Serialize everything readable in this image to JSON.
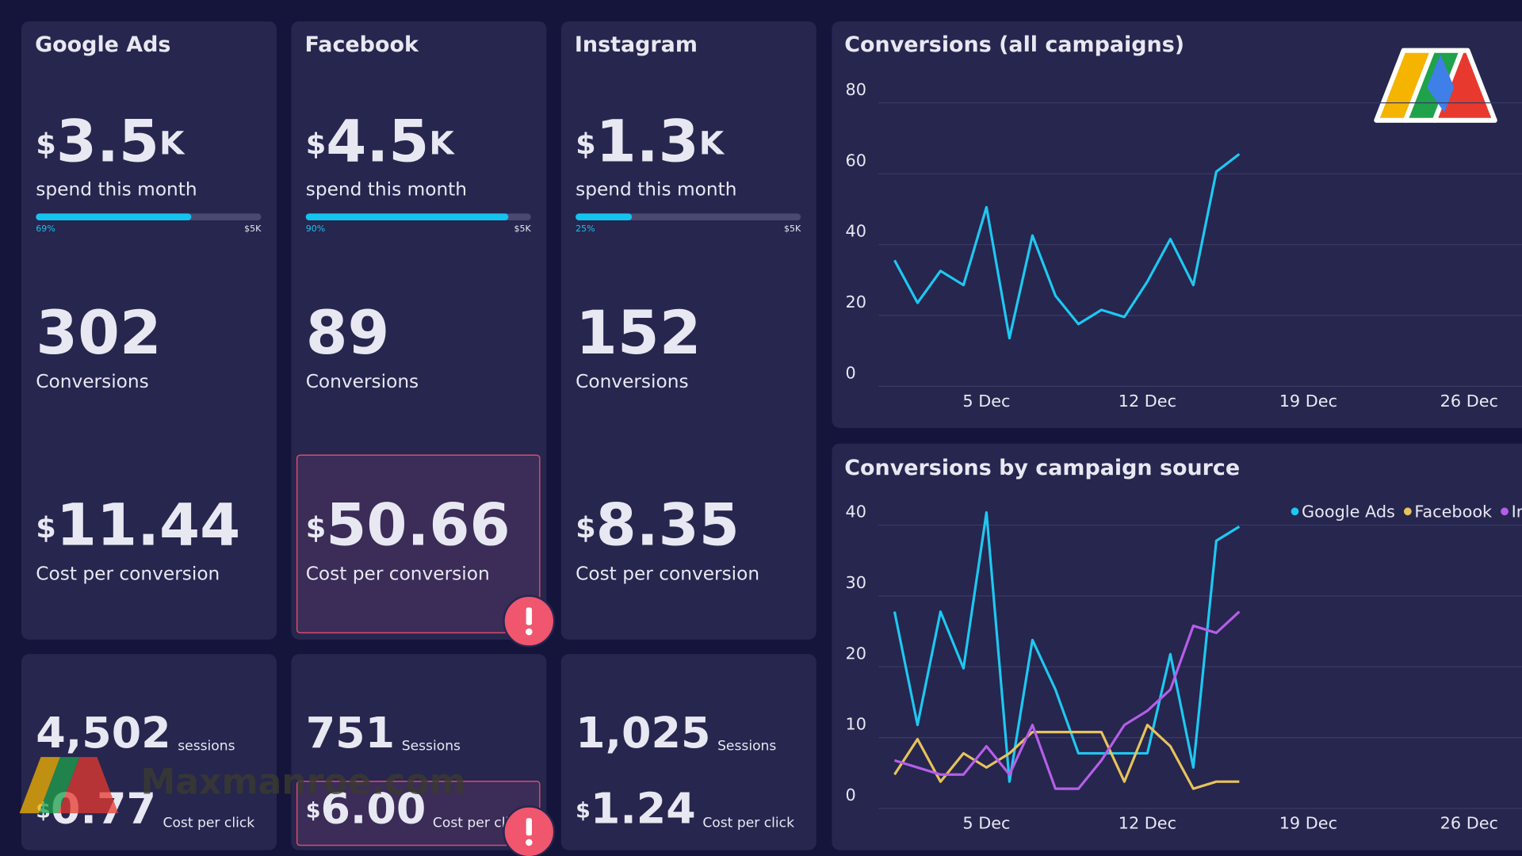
{
  "cards": [
    {
      "title": "Google Ads",
      "spend": {
        "currency": "$",
        "amount": "3.5",
        "unit": "K"
      },
      "spend_label": "spend this month",
      "progress": {
        "value": 69,
        "label": "69%"
      },
      "max_label": "$5K",
      "conversions": "302",
      "conversions_label": "Conversions",
      "cost_per_conversion": {
        "currency": "$",
        "amount": "11.44"
      },
      "cost_per_conversion_label": "Cost per conversion",
      "sessions": "4,502",
      "sessions_label": "sessions",
      "cost_per_click": {
        "currency": "$",
        "amount": "0.77"
      },
      "cost_per_click_label": "Cost per click"
    },
    {
      "title": "Facebook",
      "spend": {
        "currency": "$",
        "amount": "4.5",
        "unit": "K"
      },
      "spend_label": "spend this month",
      "progress": {
        "value": 90,
        "label": "90%"
      },
      "max_label": "$5K",
      "conversions": "89",
      "conversions_label": "Conversions",
      "cost_per_conversion": {
        "currency": "$",
        "amount": "50.66"
      },
      "cost_per_conversion_label": "Cost per conversion",
      "sessions": "751",
      "sessions_label": "Sessions",
      "cost_per_click": {
        "currency": "$",
        "amount": "6.00"
      },
      "cost_per_click_label": "Cost per click",
      "alert": true
    },
    {
      "title": "Instagram",
      "spend": {
        "currency": "$",
        "amount": "1.3",
        "unit": "K"
      },
      "spend_label": "spend this month",
      "progress": {
        "value": 25,
        "label": "25%"
      },
      "max_label": "$5K",
      "conversions": "152",
      "conversions_label": "Conversions",
      "cost_per_conversion": {
        "currency": "$",
        "amount": "8.35"
      },
      "cost_per_conversion_label": "Cost per conversion",
      "sessions": "1,025",
      "sessions_label": "Sessions",
      "cost_per_click": {
        "currency": "$",
        "amount": "1.24"
      },
      "cost_per_click_label": "Cost per click"
    }
  ],
  "watermark": "Maxmanroe.com",
  "chart_data": [
    {
      "type": "line",
      "title": "Conversions (all campaigns)",
      "x": [
        1,
        2,
        3,
        4,
        5,
        6,
        7,
        8,
        9,
        10,
        11,
        12,
        13,
        14,
        15,
        16
      ],
      "series": [
        {
          "name": "All campaigns",
          "color": "#1ec8f0",
          "values": [
            32,
            20,
            29,
            25,
            47,
            10,
            39,
            22,
            14,
            18,
            16,
            26,
            38,
            25,
            57,
            62
          ]
        }
      ],
      "xlim": [
        0.3,
        28.3
      ],
      "xticks": [
        {
          "value": 5,
          "label": "5 Dec"
        },
        {
          "value": 12,
          "label": "12 Dec"
        },
        {
          "value": 19,
          "label": "19 Dec"
        },
        {
          "value": 26,
          "label": "26 Dec"
        }
      ],
      "ylim": [
        0,
        80
      ],
      "yticks": [
        0,
        20,
        40,
        60,
        80
      ],
      "grid": true,
      "legend": false
    },
    {
      "type": "line",
      "title": "Conversions by campaign source",
      "x": [
        1,
        2,
        3,
        4,
        5,
        6,
        7,
        8,
        9,
        10,
        11,
        12,
        13,
        14,
        15,
        16
      ],
      "series": [
        {
          "name": "Google Ads",
          "color": "#1ec8f0",
          "values": [
            26,
            10,
            26,
            18,
            40,
            2,
            22,
            15,
            6,
            6,
            6,
            6,
            20,
            4,
            36,
            38
          ]
        },
        {
          "name": "Facebook",
          "color": "#e6c35c",
          "values": [
            3,
            8,
            2,
            6,
            4,
            6,
            9,
            9,
            9,
            9,
            2,
            10,
            7,
            1,
            2,
            2
          ]
        },
        {
          "name": "Instagram",
          "color": "#b65ee8",
          "values": [
            5,
            4,
            3,
            3,
            7,
            3,
            10,
            1,
            1,
            5,
            10,
            12,
            15,
            24,
            23,
            26
          ]
        }
      ],
      "xlim": [
        0.3,
        28.3
      ],
      "xticks": [
        {
          "value": 5,
          "label": "5 Dec"
        },
        {
          "value": 12,
          "label": "12 Dec"
        },
        {
          "value": 19,
          "label": "19 Dec"
        },
        {
          "value": 26,
          "label": "26 Dec"
        }
      ],
      "ylim": [
        0,
        40
      ],
      "yticks": [
        0,
        10,
        20,
        30,
        40
      ],
      "grid": true,
      "legend": "top-right"
    }
  ]
}
